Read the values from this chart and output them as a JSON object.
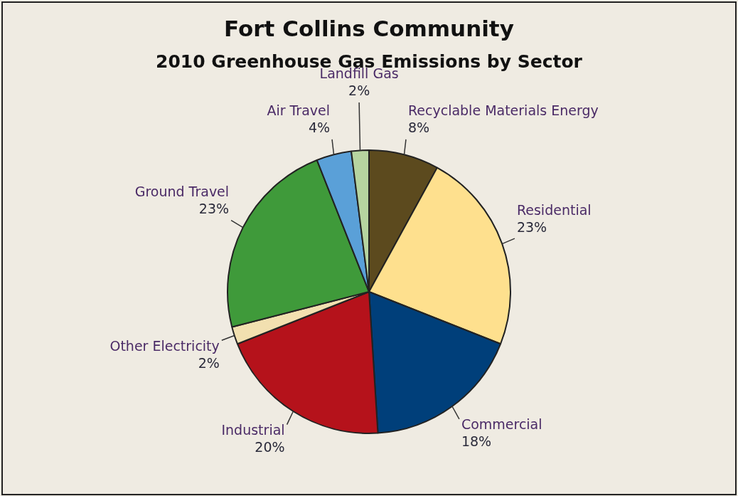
{
  "chart_data": {
    "type": "pie",
    "title": "Fort Collins Community",
    "subtitle": "2010 Greenhouse Gas Emissions by Sector",
    "categories": [
      "Recyclable Materials Energy",
      "Residential",
      "Commercial",
      "Industrial",
      "Other Electricity",
      "Ground Travel",
      "Air Travel",
      "Landfill Gas"
    ],
    "values": [
      8,
      23,
      18,
      20,
      2,
      23,
      4,
      2
    ],
    "colors": [
      "#5c4a1e",
      "#fee08e",
      "#003f7a",
      "#b5121b",
      "#f2e0b0",
      "#3f9a3a",
      "#5aa0d8",
      "#b6d4a0"
    ],
    "value_labels": [
      "8%",
      "23%",
      "18%",
      "20%",
      "2%",
      "23%",
      "4%",
      "2%"
    ],
    "legend": false
  }
}
